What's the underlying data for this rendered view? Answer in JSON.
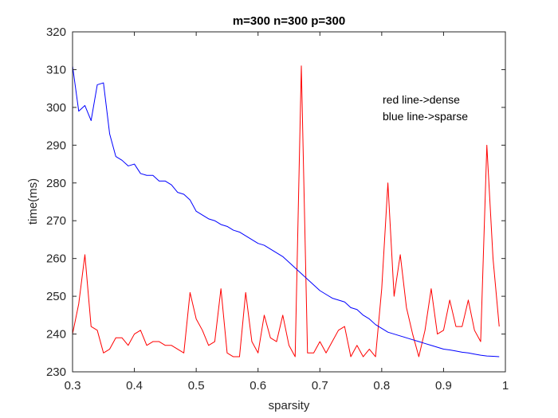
{
  "chart_data": {
    "type": "line",
    "title": "m=300 n=300 p=300",
    "xlabel": "sparsity",
    "ylabel": "time(ms)",
    "xlim": [
      0.3,
      1
    ],
    "ylim": [
      230,
      320
    ],
    "xticks": [
      0.3,
      0.4,
      0.5,
      0.6,
      0.7,
      0.8,
      0.9,
      1
    ],
    "xtick_labels": [
      "0.3",
      "0.4",
      "0.5",
      "0.6",
      "0.7",
      "0.8",
      "0.9",
      "1"
    ],
    "yticks": [
      230,
      240,
      250,
      260,
      270,
      280,
      290,
      300,
      310,
      320
    ],
    "ytick_labels": [
      "230",
      "240",
      "250",
      "260",
      "270",
      "280",
      "290",
      "300",
      "310",
      "320"
    ],
    "grid": false,
    "annotations": [
      "red line->dense",
      "blue line->sparse"
    ],
    "series": [
      {
        "color": "#ff0000",
        "x": [
          0.3,
          0.31,
          0.32,
          0.33,
          0.34,
          0.35,
          0.36,
          0.37,
          0.38,
          0.39,
          0.4,
          0.41,
          0.42,
          0.43,
          0.44,
          0.45,
          0.46,
          0.47,
          0.48,
          0.49,
          0.5,
          0.51,
          0.52,
          0.53,
          0.54,
          0.55,
          0.56,
          0.57,
          0.58,
          0.59,
          0.6,
          0.61,
          0.62,
          0.63,
          0.64,
          0.65,
          0.66,
          0.67,
          0.68,
          0.69,
          0.7,
          0.71,
          0.72,
          0.73,
          0.74,
          0.75,
          0.76,
          0.77,
          0.78,
          0.79,
          0.8,
          0.81,
          0.82,
          0.83,
          0.84,
          0.85,
          0.86,
          0.87,
          0.88,
          0.89,
          0.9,
          0.91,
          0.92,
          0.93,
          0.94,
          0.95,
          0.96,
          0.97,
          0.98,
          0.99
        ],
        "values": [
          240,
          248,
          261,
          242,
          241,
          235,
          236,
          239,
          239,
          237,
          240,
          241,
          237,
          238,
          238,
          237,
          237,
          236,
          235,
          251,
          244,
          241,
          237,
          238,
          252,
          235,
          234,
          234,
          251,
          238,
          235,
          245,
          239,
          238,
          245,
          237,
          234,
          311,
          235,
          235,
          238,
          235,
          238,
          241,
          242,
          234,
          237,
          234,
          236,
          234,
          252,
          280,
          250,
          261,
          247,
          240,
          234,
          241,
          252,
          240,
          241,
          249,
          242,
          242,
          249,
          241,
          238,
          290,
          260,
          242
        ]
      },
      {
        "color": "#0000ff",
        "x": [
          0.3,
          0.31,
          0.32,
          0.33,
          0.34,
          0.35,
          0.36,
          0.37,
          0.38,
          0.39,
          0.4,
          0.41,
          0.42,
          0.43,
          0.44,
          0.45,
          0.46,
          0.47,
          0.48,
          0.49,
          0.5,
          0.51,
          0.52,
          0.53,
          0.54,
          0.55,
          0.56,
          0.57,
          0.58,
          0.59,
          0.6,
          0.61,
          0.62,
          0.63,
          0.64,
          0.65,
          0.66,
          0.67,
          0.68,
          0.69,
          0.7,
          0.71,
          0.72,
          0.73,
          0.74,
          0.75,
          0.76,
          0.77,
          0.78,
          0.79,
          0.8,
          0.81,
          0.82,
          0.83,
          0.84,
          0.85,
          0.86,
          0.87,
          0.88,
          0.89,
          0.9,
          0.91,
          0.92,
          0.93,
          0.94,
          0.95,
          0.96,
          0.97,
          0.98,
          0.99
        ],
        "values": [
          311,
          299,
          300.5,
          296.5,
          306,
          306.5,
          293,
          287,
          286,
          284.5,
          285,
          282.5,
          282,
          282,
          280.5,
          280.5,
          279.5,
          277.5,
          277,
          275.5,
          272.5,
          271.5,
          270.5,
          270,
          269,
          268.5,
          267.5,
          267,
          266,
          265,
          264,
          263.5,
          262.5,
          261.5,
          260.5,
          259,
          257.5,
          256,
          254.5,
          253,
          251.5,
          250.5,
          249.5,
          249,
          248.5,
          247,
          246.5,
          245,
          244,
          242.5,
          241.5,
          240.5,
          240,
          239.5,
          239,
          238.5,
          238,
          237.5,
          237,
          236.5,
          236,
          235.8,
          235.5,
          235.2,
          235,
          234.7,
          234.4,
          234.2,
          234.1,
          234
        ]
      }
    ]
  }
}
